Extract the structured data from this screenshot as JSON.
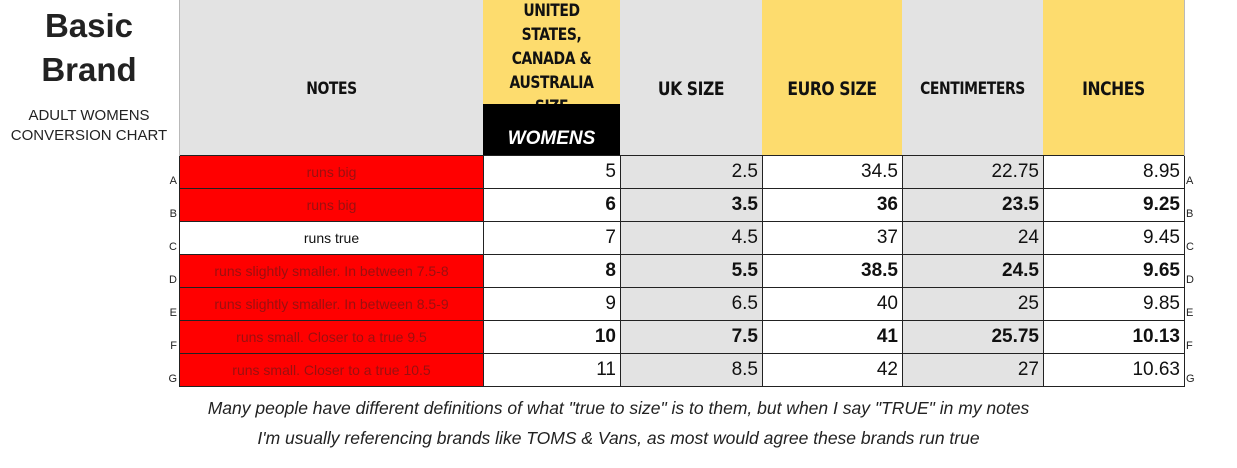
{
  "brand": {
    "title_line1": "Basic",
    "title_line2": "Brand",
    "subtitle_line1": "ADULT WOMENS",
    "subtitle_line2": "CONVERSION  CHART"
  },
  "headers": {
    "notes": "NOTES",
    "us_line1": "UNITED STATES,",
    "us_line2": "CANADA &",
    "us_line3": "AUSTRALIA SIZE",
    "uk": "UK SIZE",
    "euro": "EURO SIZE",
    "cm": "CENTIMETERS",
    "inches": "INCHES",
    "womens": "WOMENS"
  },
  "colors": {
    "yellow": "#fddc6e",
    "light_gray": "#e3e3e3",
    "red": "#ff0000",
    "black": "#000000"
  },
  "rows": [
    {
      "label": "A",
      "note": "runs big",
      "note_style": "red",
      "us": "5",
      "uk": "2.5",
      "euro": "34.5",
      "cm": "22.75",
      "inches": "8.95",
      "bold": false
    },
    {
      "label": "B",
      "note": "runs big",
      "note_style": "red",
      "us": "6",
      "uk": "3.5",
      "euro": "36",
      "cm": "23.5",
      "inches": "9.25",
      "bold": true
    },
    {
      "label": "C",
      "note": "runs true",
      "note_style": "white",
      "us": "7",
      "uk": "4.5",
      "euro": "37",
      "cm": "24",
      "inches": "9.45",
      "bold": false
    },
    {
      "label": "D",
      "note": "runs slightly smaller. In between 7.5-8",
      "note_style": "red",
      "us": "8",
      "uk": "5.5",
      "euro": "38.5",
      "cm": "24.5",
      "inches": "9.65",
      "bold": true
    },
    {
      "label": "E",
      "note": "runs slightly smaller. In between 8.5-9",
      "note_style": "red",
      "us": "9",
      "uk": "6.5",
      "euro": "40",
      "cm": "25",
      "inches": "9.85",
      "bold": false
    },
    {
      "label": "F",
      "note": "runs small. Closer to a true 9.5",
      "note_style": "red",
      "us": "10",
      "uk": "7.5",
      "euro": "41",
      "cm": "25.75",
      "inches": "10.13",
      "bold": true
    },
    {
      "label": "G",
      "note": "runs small. Closer to a true 10.5",
      "note_style": "red",
      "us": "11",
      "uk": "8.5",
      "euro": "42",
      "cm": "27",
      "inches": "10.63",
      "bold": false
    }
  ],
  "footnote": {
    "line1": "Many people have different definitions of what \"true to size\" is to them, but when I say \"TRUE\" in my notes",
    "line2": "I'm usually referencing brands like TOMS & Vans, as most would agree these brands run true"
  }
}
